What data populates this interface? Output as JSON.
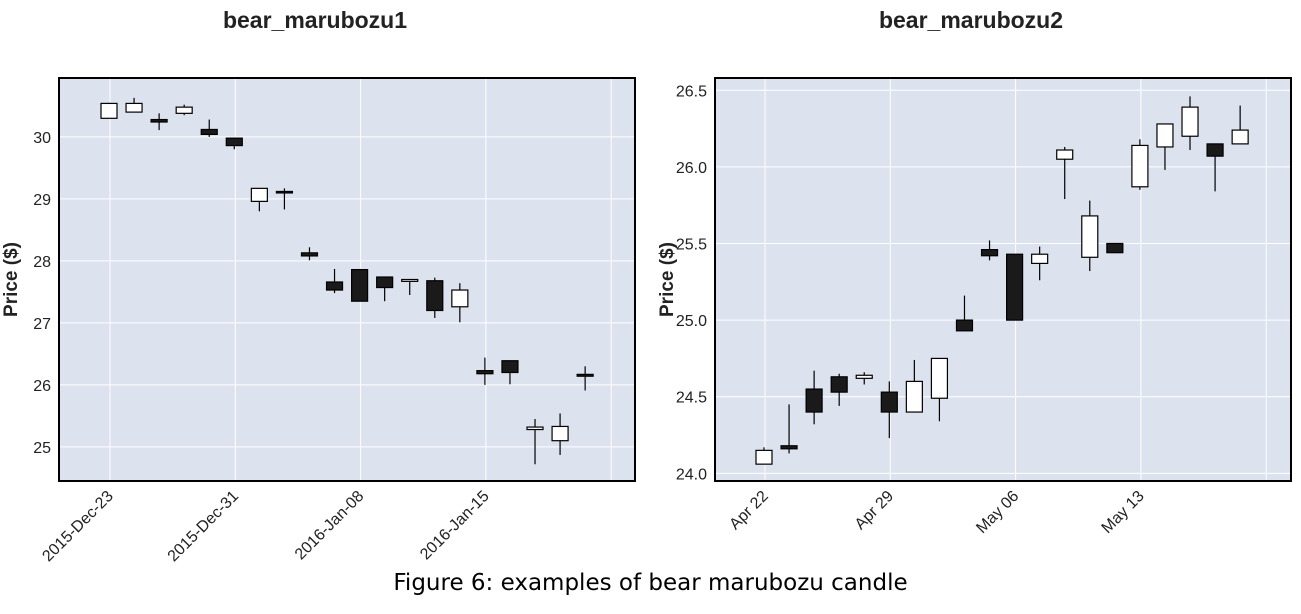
{
  "caption": "Figure 6: examples of bear marubozu candle",
  "chart_data": [
    {
      "type": "candlestick",
      "title": "bear_marubozu1",
      "ylabel": "Price ($)",
      "xlabel": "",
      "ylim": [
        24.45,
        30.95
      ],
      "grid": true,
      "yticks": [
        25,
        26,
        27,
        28,
        29,
        30
      ],
      "xtick_labels": [
        "2015-Dec-23",
        "2015-Dec-31",
        "2016-Jan-08",
        "2016-Jan-15"
      ],
      "candles": [
        {
          "o": 30.3,
          "h": 30.55,
          "l": 30.3,
          "c": 30.54
        },
        {
          "o": 30.4,
          "h": 30.63,
          "l": 30.4,
          "c": 30.54
        },
        {
          "o": 30.28,
          "h": 30.38,
          "l": 30.11,
          "c": 30.24
        },
        {
          "o": 30.38,
          "h": 30.52,
          "l": 30.35,
          "c": 30.48
        },
        {
          "o": 30.12,
          "h": 30.28,
          "l": 30.0,
          "c": 30.04
        },
        {
          "o": 29.98,
          "h": 29.99,
          "l": 29.8,
          "c": 29.86
        },
        {
          "o": 28.96,
          "h": 29.17,
          "l": 28.8,
          "c": 29.17
        },
        {
          "o": 29.12,
          "h": 29.17,
          "l": 28.83,
          "c": 29.11
        },
        {
          "o": 28.13,
          "h": 28.22,
          "l": 28.01,
          "c": 28.08
        },
        {
          "o": 27.66,
          "h": 27.87,
          "l": 27.48,
          "c": 27.53
        },
        {
          "o": 27.86,
          "h": 27.87,
          "l": 27.35,
          "c": 27.35
        },
        {
          "o": 27.74,
          "h": 27.74,
          "l": 27.35,
          "c": 27.57
        },
        {
          "o": 27.67,
          "h": 27.69,
          "l": 27.45,
          "c": 27.7
        },
        {
          "o": 27.68,
          "h": 27.73,
          "l": 27.08,
          "c": 27.2
        },
        {
          "o": 27.26,
          "h": 27.64,
          "l": 27.01,
          "c": 27.53
        },
        {
          "o": 26.23,
          "h": 26.44,
          "l": 26.0,
          "c": 26.18
        },
        {
          "o": 26.39,
          "h": 26.39,
          "l": 26.01,
          "c": 26.2
        },
        {
          "o": 25.28,
          "h": 25.45,
          "l": 24.72,
          "c": 25.32
        },
        {
          "o": 25.1,
          "h": 25.54,
          "l": 24.87,
          "c": 25.33
        },
        {
          "o": 26.17,
          "h": 26.3,
          "l": 25.91,
          "c": 26.14
        }
      ],
      "candle_slots": [
        0,
        1,
        2,
        3,
        4,
        5,
        6,
        7,
        8,
        9,
        10,
        11,
        12,
        13,
        14,
        15,
        16,
        17,
        18,
        19
      ],
      "xtick_slots": [
        0,
        5,
        10,
        15
      ]
    },
    {
      "type": "candlestick",
      "title": "bear_marubozu2",
      "ylabel": "Price ($)",
      "xlabel": "",
      "ylim": [
        23.95,
        26.58
      ],
      "grid": true,
      "yticks": [
        "24.0",
        "24.5",
        "25.0",
        "25.5",
        "26.0",
        "26.5"
      ],
      "xtick_labels": [
        "Apr 22",
        "Apr 29",
        "May 06",
        "May 13"
      ],
      "candles": [
        {
          "o": 24.06,
          "h": 24.17,
          "l": 24.06,
          "c": 24.15
        },
        {
          "o": 24.18,
          "h": 24.45,
          "l": 24.13,
          "c": 24.16
        },
        {
          "o": 24.55,
          "h": 24.67,
          "l": 24.32,
          "c": 24.4
        },
        {
          "o": 24.63,
          "h": 24.65,
          "l": 24.44,
          "c": 24.53
        },
        {
          "o": 24.62,
          "h": 24.66,
          "l": 24.58,
          "c": 24.64
        },
        {
          "o": 24.53,
          "h": 24.6,
          "l": 24.23,
          "c": 24.4
        },
        {
          "o": 24.4,
          "h": 24.74,
          "l": 24.4,
          "c": 24.6
        },
        {
          "o": 24.49,
          "h": 24.75,
          "l": 24.34,
          "c": 24.75
        },
        {
          "o": 25.0,
          "h": 25.16,
          "l": 24.93,
          "c": 24.93
        },
        {
          "o": 25.46,
          "h": 25.52,
          "l": 25.39,
          "c": 25.42
        },
        {
          "o": 25.43,
          "h": 25.43,
          "l": 25.0,
          "c": 25.0
        },
        {
          "o": 25.37,
          "h": 25.48,
          "l": 25.26,
          "c": 25.43
        },
        {
          "o": 26.05,
          "h": 26.13,
          "l": 25.79,
          "c": 26.11
        },
        {
          "o": 25.41,
          "h": 25.78,
          "l": 25.32,
          "c": 25.68
        },
        {
          "o": 25.5,
          "h": 25.5,
          "l": 25.44,
          "c": 25.44
        },
        {
          "o": 25.87,
          "h": 26.18,
          "l": 25.85,
          "c": 26.14
        },
        {
          "o": 26.13,
          "h": 26.28,
          "l": 25.98,
          "c": 26.28
        },
        {
          "o": 26.2,
          "h": 26.46,
          "l": 26.11,
          "c": 26.39
        },
        {
          "o": 26.15,
          "h": 26.15,
          "l": 25.84,
          "c": 26.07
        },
        {
          "o": 26.15,
          "h": 26.4,
          "l": 26.15,
          "c": 26.24
        }
      ],
      "candle_slots": [
        0,
        1,
        2,
        3,
        4,
        5,
        6,
        7,
        8,
        9,
        10,
        11,
        12,
        13,
        14,
        15,
        16,
        17,
        18,
        19
      ],
      "xtick_slots": [
        0,
        5,
        10,
        15
      ]
    }
  ],
  "colors": {
    "plot_bg": "#dde2ef",
    "grid": "#ffffff",
    "up_body": "#ffffff",
    "down_body": "#1a1a1a",
    "outline": "#000000",
    "text": "#222222"
  }
}
